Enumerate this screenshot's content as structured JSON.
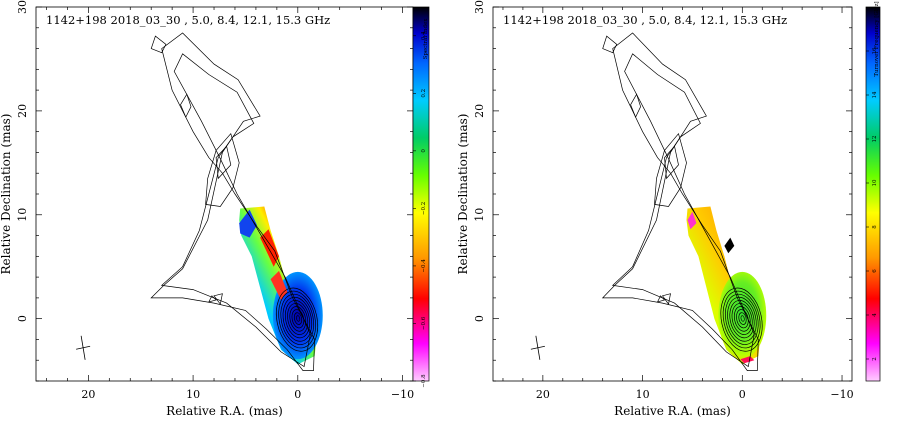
{
  "figure": {
    "panels": [
      {
        "title": "1142+198   2018_03_30  , 5.0, 8.4, 12.1, 15.3 GHz",
        "xlabel": "Relative R.A. (mas)",
        "ylabel": "Relative Declination (mas)",
        "colorbar_title": "Spectral Index",
        "x_ticks": [
          "20",
          "10",
          "0",
          "−10"
        ],
        "y_ticks": [
          "0",
          "10",
          "20",
          "30"
        ],
        "cbar_ticks": [
          "−0.8",
          "−0.6",
          "−0.4",
          "−0.2",
          "0",
          "0.2",
          "0.4"
        ]
      },
      {
        "title": "1142+198   2018_03_30  , 5.0, 8.4, 12.1, 15.3 GHz",
        "xlabel": "Relative R.A. (mas)",
        "ylabel": "Relative Declination (mas)",
        "colorbar_title": "Turnover Frequency [GHz]",
        "x_ticks": [
          "20",
          "10",
          "0",
          "−10"
        ],
        "y_ticks": [
          "0",
          "10",
          "20",
          "30"
        ],
        "cbar_ticks": [
          "2",
          "4",
          "6",
          "8",
          "10",
          "12",
          "14",
          "16"
        ]
      }
    ]
  },
  "chart_data": [
    {
      "type": "heatmap",
      "title": "1142+198   2018_03_30  , 5.0, 8.4, 12.1, 15.3 GHz",
      "xlabel": "Relative R.A. (mas)",
      "ylabel": "Relative Declination (mas)",
      "xlim": [
        25,
        -11
      ],
      "ylim": [
        -6,
        30
      ],
      "colorbar": {
        "label": "Spectral Index",
        "range": [
          -0.8,
          0.5
        ],
        "ticks": [
          -0.8,
          -0.6,
          -0.4,
          -0.2,
          0,
          0.2,
          0.4
        ]
      },
      "core_position": [
        0,
        0
      ],
      "colormap": [
        "#ffccff",
        "#ff00ff",
        "#ff0000",
        "#ff9900",
        "#ffff00",
        "#66ff00",
        "#00cc66",
        "#00ccff",
        "#0066ff",
        "#0000cc",
        "#000000"
      ]
    },
    {
      "type": "heatmap",
      "title": "1142+198   2018_03_30  , 5.0, 8.4, 12.1, 15.3 GHz",
      "xlabel": "Relative R.A. (mas)",
      "ylabel": "Relative Declination (mas)",
      "xlim": [
        25,
        -11
      ],
      "ylim": [
        -6,
        30
      ],
      "colorbar": {
        "label": "Turnover Frequency [GHz]",
        "range": [
          1,
          18
        ],
        "ticks": [
          2,
          4,
          6,
          8,
          10,
          12,
          14,
          16
        ]
      },
      "core_position": [
        0,
        0
      ],
      "colormap": [
        "#ffccff",
        "#ff00ff",
        "#ff0000",
        "#ff9900",
        "#ffff00",
        "#66ff00",
        "#00cc66",
        "#00ccff",
        "#0066ff",
        "#0000cc",
        "#000000"
      ]
    }
  ]
}
